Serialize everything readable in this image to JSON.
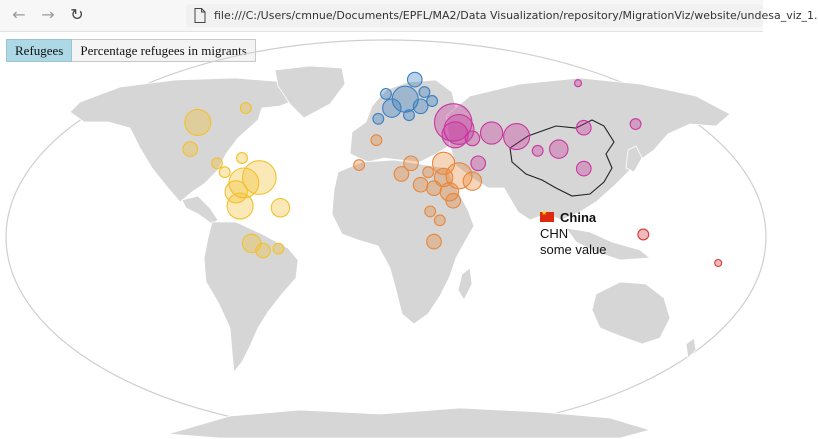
{
  "browser": {
    "url": "file:///C:/Users/cmnue/Documents/EPFL/MA2/Data Visualization/repository/MigrationViz/website/undesa_viz_1.",
    "back_icon": "arrow-left-icon",
    "forward_icon": "arrow-right-icon",
    "reload_icon": "reload-icon",
    "page_icon": "file-icon"
  },
  "toggles": [
    {
      "label": "Refugees",
      "active": true
    },
    {
      "label": "Percentage refugees in migrants",
      "active": false
    }
  ],
  "tooltip": {
    "name": "China",
    "code": "CHN",
    "value": "some value",
    "flag_icon": "china-flag-icon"
  },
  "region_colors": {
    "Americas": "#f2c12e",
    "Europe": "#3a7fc1",
    "Africa": "#e8863a",
    "Asia": "#c8379f",
    "Oceania": "#d63a3a"
  },
  "map_data": {
    "type": "proportional-symbol-map",
    "highlighted_country": "China",
    "bubbles": [
      {
        "region": "Americas",
        "lon": -73,
        "lat": 46,
        "size": 2
      },
      {
        "region": "Americas",
        "lon": -98,
        "lat": 38,
        "size": 6
      },
      {
        "region": "Americas",
        "lon": -102,
        "lat": 23,
        "size": 3
      },
      {
        "region": "Americas",
        "lon": -88,
        "lat": 15,
        "size": 2
      },
      {
        "region": "Americas",
        "lon": -84,
        "lat": 10,
        "size": 2
      },
      {
        "region": "Americas",
        "lon": -75,
        "lat": 18,
        "size": 2
      },
      {
        "region": "Americas",
        "lon": -66,
        "lat": 7,
        "size": 8
      },
      {
        "region": "Americas",
        "lon": -74,
        "lat": 4,
        "size": 7
      },
      {
        "region": "Americas",
        "lon": -78,
        "lat": -1,
        "size": 5
      },
      {
        "region": "Americas",
        "lon": -76,
        "lat": -9,
        "size": 6
      },
      {
        "region": "Americas",
        "lon": -55,
        "lat": -10,
        "size": 4
      },
      {
        "region": "Americas",
        "lon": -70,
        "lat": -30,
        "size": 4
      },
      {
        "region": "Americas",
        "lon": -64,
        "lat": -34,
        "size": 3
      },
      {
        "region": "Americas",
        "lon": -56,
        "lat": -33,
        "size": 2
      },
      {
        "region": "Europe",
        "lon": 15,
        "lat": 62,
        "size": 3
      },
      {
        "region": "Europe",
        "lon": 10,
        "lat": 51,
        "size": 6
      },
      {
        "region": "Europe",
        "lon": 0,
        "lat": 54,
        "size": 2
      },
      {
        "region": "Europe",
        "lon": 3,
        "lat": 46,
        "size": 4
      },
      {
        "region": "Europe",
        "lon": 18,
        "lat": 47,
        "size": 3
      },
      {
        "region": "Europe",
        "lon": 12,
        "lat": 42,
        "size": 2
      },
      {
        "region": "Europe",
        "lon": -4,
        "lat": 40,
        "size": 2
      },
      {
        "region": "Europe",
        "lon": 20,
        "lat": 55,
        "size": 2
      },
      {
        "region": "Europe",
        "lon": 24,
        "lat": 50,
        "size": 2
      },
      {
        "region": "Africa",
        "lon": -5,
        "lat": 28,
        "size": 2
      },
      {
        "region": "Africa",
        "lon": 13,
        "lat": 15,
        "size": 3
      },
      {
        "region": "Africa",
        "lon": 30,
        "lat": 15,
        "size": 5
      },
      {
        "region": "Africa",
        "lon": 22,
        "lat": 10,
        "size": 2
      },
      {
        "region": "Africa",
        "lon": 8,
        "lat": 9,
        "size": 3
      },
      {
        "region": "Africa",
        "lon": 18,
        "lat": 3,
        "size": 3
      },
      {
        "region": "Africa",
        "lon": 25,
        "lat": 1,
        "size": 3
      },
      {
        "region": "Africa",
        "lon": 30,
        "lat": 7,
        "size": 4
      },
      {
        "region": "Africa",
        "lon": 38,
        "lat": 8,
        "size": 6
      },
      {
        "region": "Africa",
        "lon": 45,
        "lat": 5,
        "size": 4
      },
      {
        "region": "Africa",
        "lon": 33,
        "lat": -1,
        "size": 4
      },
      {
        "region": "Africa",
        "lon": 35,
        "lat": -6,
        "size": 3
      },
      {
        "region": "Africa",
        "lon": 23,
        "lat": -12,
        "size": 2
      },
      {
        "region": "Africa",
        "lon": 28,
        "lat": -17,
        "size": 2
      },
      {
        "region": "Africa",
        "lon": 25,
        "lat": -29,
        "size": 3
      },
      {
        "region": "Africa",
        "lon": -14,
        "lat": 14,
        "size": 2
      },
      {
        "region": "Asia",
        "lon": 35,
        "lat": 38,
        "size": 9
      },
      {
        "region": "Asia",
        "lon": 38,
        "lat": 34,
        "size": 7
      },
      {
        "region": "Asia",
        "lon": 36,
        "lat": 31,
        "size": 6
      },
      {
        "region": "Asia",
        "lon": 45,
        "lat": 29,
        "size": 3
      },
      {
        "region": "Asia",
        "lon": 55,
        "lat": 32,
        "size": 5
      },
      {
        "region": "Asia",
        "lon": 68,
        "lat": 30,
        "size": 6
      },
      {
        "region": "Asia",
        "lon": 79,
        "lat": 22,
        "size": 2
      },
      {
        "region": "Asia",
        "lon": 90,
        "lat": 23,
        "size": 4
      },
      {
        "region": "Asia",
        "lon": 103,
        "lat": 35,
        "size": 3
      },
      {
        "region": "Asia",
        "lon": 48,
        "lat": 15,
        "size": 3
      },
      {
        "region": "Asia",
        "lon": 103,
        "lat": 12,
        "size": 3
      },
      {
        "region": "Asia",
        "lon": 130,
        "lat": 37,
        "size": 2
      },
      {
        "region": "Asia",
        "lon": 100,
        "lat": 60,
        "size": 1
      },
      {
        "region": "Oceania",
        "lon": 134,
        "lat": -25,
        "size": 2
      },
      {
        "region": "Oceania",
        "lon": 173,
        "lat": -41,
        "size": 1
      }
    ]
  }
}
